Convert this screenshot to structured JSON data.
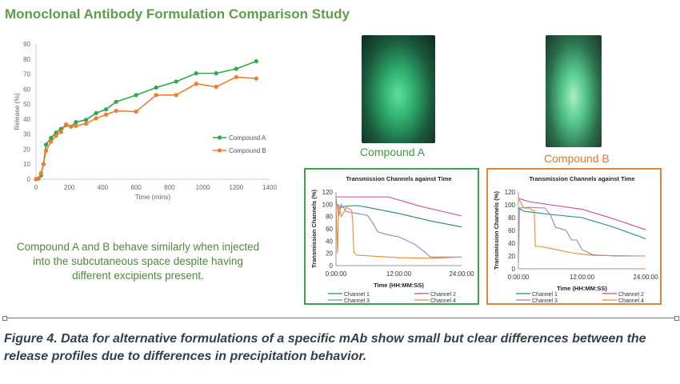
{
  "title": "Monoclonal Antibody Formulation Comparison Study",
  "description": "Compound A and B behave similarly when injected into the subcutaneous space despite having different excipients present.",
  "photos": [
    {
      "label": "Compound A",
      "color": "#3f9a3f"
    },
    {
      "label": "Compound B",
      "color": "#e07a30"
    }
  ],
  "caption": "Figure 4. Data for alternative formulations of a specific mAb show small but clear differences between the release profiles due to differences in precipitation behavior.",
  "chart_data": [
    {
      "type": "line",
      "title": "",
      "xlabel": "Time (mins)",
      "ylabel": "Release (%)",
      "xlim": [
        0,
        1400
      ],
      "ylim": [
        0,
        90
      ],
      "xticks": [
        0,
        200,
        400,
        600,
        800,
        1000,
        1200,
        1400
      ],
      "yticks": [
        0,
        10,
        20,
        30,
        40,
        50,
        60,
        70,
        80,
        90
      ],
      "grid": false,
      "legend": "right",
      "series": [
        {
          "name": "Compound A",
          "color": "#2ea84a",
          "x": [
            0,
            15,
            30,
            45,
            60,
            90,
            120,
            150,
            180,
            210,
            240,
            300,
            360,
            420,
            480,
            600,
            720,
            840,
            960,
            1080,
            1200,
            1320
          ],
          "y": [
            0,
            0.5,
            2.5,
            10,
            23,
            27.5,
            31,
            33.5,
            36,
            35,
            38,
            39.5,
            44,
            46.5,
            51.5,
            56,
            61,
            65,
            70.5,
            70.5,
            73.5,
            78.5
          ]
        },
        {
          "name": "Compound B",
          "color": "#ef7d2d",
          "x": [
            0,
            15,
            30,
            45,
            60,
            90,
            120,
            150,
            180,
            210,
            240,
            300,
            360,
            420,
            480,
            600,
            720,
            840,
            960,
            1080,
            1200,
            1320
          ],
          "y": [
            0,
            0.3,
            4,
            10,
            19,
            25,
            29,
            31.5,
            36.5,
            35,
            35.5,
            37,
            40.5,
            43,
            45.5,
            45,
            56,
            56,
            63.5,
            61.5,
            68,
            67
          ]
        }
      ]
    },
    {
      "type": "line",
      "title": "Transmission Channels against Time",
      "xlabel": "Time (HH:MM:SS)",
      "ylabel": "Transmission Channels (%)",
      "xlim": [
        0,
        24
      ],
      "ylim": [
        0,
        120
      ],
      "xticks": [
        "0:00:00",
        "12:00:00",
        "24:00:00"
      ],
      "yticks": [
        0,
        20,
        40,
        60,
        80,
        100,
        120
      ],
      "legend": "bottom",
      "series": [
        {
          "name": "Channel 1",
          "color": "#1f8a7a",
          "x": [
            0,
            1,
            2,
            4,
            6,
            12,
            18,
            24
          ],
          "y": [
            100,
            95,
            97,
            98,
            95,
            85,
            73,
            63
          ]
        },
        {
          "name": "Channel 2",
          "color": "#c9479c",
          "x": [
            0,
            0.5,
            10,
            16,
            24
          ],
          "y": [
            112,
            112,
            112,
            97,
            81
          ]
        },
        {
          "name": "Channel 3",
          "color": "#8a86cc",
          "x": [
            0,
            0.5,
            1,
            2,
            4,
            6,
            7,
            8,
            10,
            12,
            15,
            17,
            18,
            24
          ],
          "y": [
            110,
            80,
            100,
            88,
            85,
            82,
            70,
            55,
            50,
            47,
            35,
            22,
            14,
            14
          ]
        },
        {
          "name": "Channel 4",
          "color": "#ef8a2d",
          "x": [
            0,
            0.3,
            0.5,
            1,
            2,
            3,
            3.2,
            3.4,
            4,
            12,
            18,
            24
          ],
          "y": [
            100,
            20,
            100,
            80,
            95,
            90,
            70,
            22,
            17,
            13,
            12,
            14
          ]
        }
      ]
    },
    {
      "type": "line",
      "title": "Transmission Channels against Time",
      "xlabel": "Time (HH:MM:SS)",
      "ylabel": "Transmission Channels (%)",
      "xlim": [
        0,
        24
      ],
      "ylim": [
        0,
        120
      ],
      "xticks": [
        "0:00:00",
        "12:00:00",
        "24:00:00"
      ],
      "yticks": [
        0,
        20,
        40,
        60,
        80,
        100,
        120
      ],
      "legend": "bottom",
      "series": [
        {
          "name": "Channel 1",
          "color": "#1f8a7a",
          "x": [
            0,
            1,
            3,
            6,
            12,
            18,
            24
          ],
          "y": [
            95,
            90,
            88,
            85,
            80,
            65,
            47
          ]
        },
        {
          "name": "Channel 2",
          "color": "#c9479c",
          "x": [
            0,
            2,
            6,
            12,
            18,
            24
          ],
          "y": [
            110,
            105,
            100,
            93,
            78,
            61
          ]
        },
        {
          "name": "Channel 3",
          "color": "#8a86cc",
          "x": [
            0,
            0.2,
            2,
            5,
            6,
            7,
            9,
            10,
            11,
            12,
            14,
            18,
            24
          ],
          "y": [
            10,
            95,
            96,
            95,
            85,
            65,
            60,
            45,
            45,
            30,
            22,
            20,
            20
          ]
        },
        {
          "name": "Channel 4",
          "color": "#ef8a2d",
          "x": [
            0,
            1,
            2,
            3,
            3.2,
            4,
            6,
            10,
            14,
            24
          ],
          "y": [
            110,
            95,
            95,
            90,
            35,
            35,
            32,
            25,
            21,
            20
          ]
        }
      ]
    }
  ]
}
